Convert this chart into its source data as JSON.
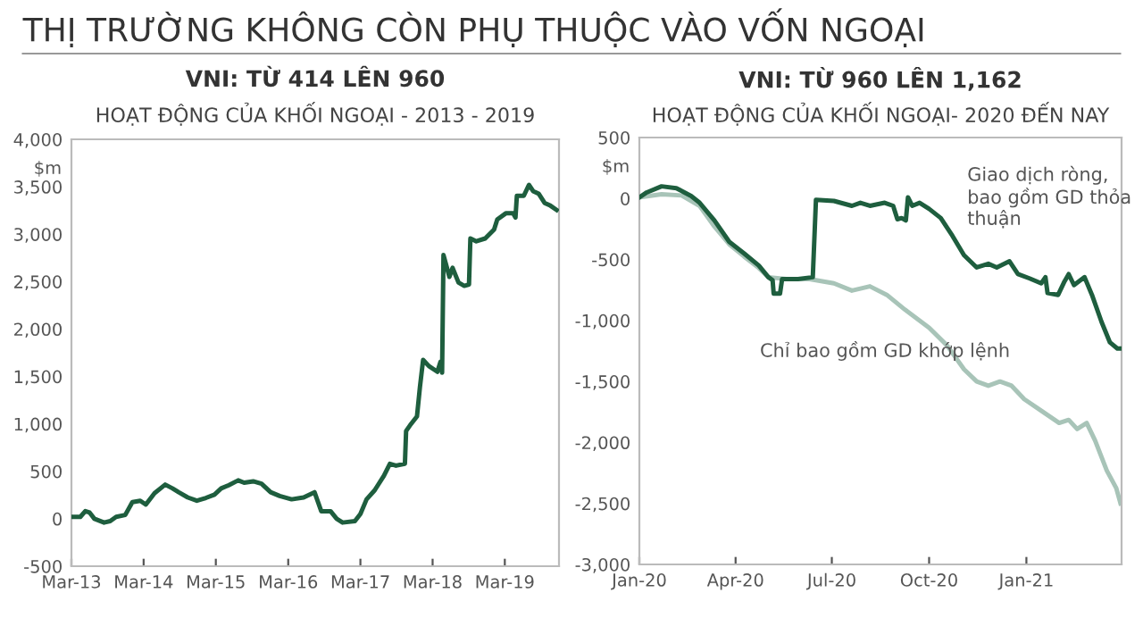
{
  "chart_data": [
    {
      "type": "line",
      "title": "VNI: TỪ 414 LÊN 960",
      "subtitle": "HOẠT ĐỘNG CỦA KHỐI NGOẠI - 2013 - 2019",
      "ylabel": "$m",
      "annotations": [
        "THỊ TRƯỜNG KHÔNG CÒN PHỤ THUỘC VÀO VỐN NGOẠI"
      ],
      "xlim": [
        "2013-03-01",
        "2019-11-30"
      ],
      "xticks": [
        {
          "value": "2013-03-01",
          "label": "Mar-13"
        },
        {
          "value": "2014-03-01",
          "label": "Mar-14"
        },
        {
          "value": "2015-03-01",
          "label": "Mar-15"
        },
        {
          "value": "2016-03-01",
          "label": "Mar-16"
        },
        {
          "value": "2017-03-01",
          "label": "Mar-17"
        },
        {
          "value": "2018-03-01",
          "label": "Mar-18"
        },
        {
          "value": "2019-03-01",
          "label": "Mar-19"
        }
      ],
      "ylim": [
        -500,
        4000
      ],
      "yticks": [
        {
          "value": -500,
          "label": "-500"
        },
        {
          "value": 0,
          "label": "0"
        },
        {
          "value": 500,
          "label": "500"
        },
        {
          "value": 1000,
          "label": "1,000"
        },
        {
          "value": 1500,
          "label": "1,500"
        },
        {
          "value": 2000,
          "label": "2,000"
        },
        {
          "value": 2500,
          "label": "2,500"
        },
        {
          "value": 3000,
          "label": "3,000"
        },
        {
          "value": 3500,
          "label": "3,500"
        },
        {
          "value": 4000,
          "label": "4,000"
        }
      ],
      "grid": false,
      "legend": false,
      "marker": "none",
      "line_style": "solid",
      "series": [
        {
          "color": "#1e5e3e",
          "x": [
            "2013-03-01",
            "2013-04-15",
            "2013-05-10",
            "2013-06-01",
            "2013-06-25",
            "2013-08-13",
            "2013-09-13",
            "2013-10-13",
            "2013-11-28",
            "2014-01-03",
            "2014-02-12",
            "2014-03-12",
            "2014-04-25",
            "2014-06-18",
            "2014-07-25",
            "2014-08-25",
            "2014-10-10",
            "2014-11-25",
            "2015-01-10",
            "2015-02-22",
            "2015-03-28",
            "2015-05-06",
            "2015-06-22",
            "2015-07-22",
            "2015-09-06",
            "2015-10-18",
            "2015-12-03",
            "2016-01-18",
            "2016-03-18",
            "2016-05-18",
            "2016-07-12",
            "2016-08-15",
            "2016-10-01",
            "2016-11-01",
            "2016-12-01",
            "2017-02-01",
            "2017-03-01",
            "2017-04-01",
            "2017-05-12",
            "2017-06-28",
            "2017-07-28",
            "2017-08-28",
            "2017-10-12",
            "2017-10-18",
            "2017-11-12",
            "2017-12-12",
            "2017-12-27",
            "2018-01-12",
            "2018-02-10",
            "2018-03-25",
            "2018-04-10",
            "2018-04-18",
            "2018-04-25",
            "2018-05-25",
            "2018-06-10",
            "2018-07-10",
            "2018-08-08",
            "2018-09-01",
            "2018-09-08",
            "2018-10-08",
            "2018-11-22",
            "2019-01-06",
            "2019-01-22",
            "2019-03-06",
            "2019-04-12",
            "2019-04-24",
            "2019-05-01",
            "2019-06-05",
            "2019-07-01",
            "2019-07-22",
            "2019-08-20",
            "2019-09-18",
            "2019-10-18",
            "2019-11-18"
          ],
          "values": [
            20,
            20,
            80,
            65,
            0,
            -40,
            -25,
            20,
            40,
            175,
            190,
            150,
            270,
            360,
            320,
            280,
            225,
            190,
            220,
            255,
            320,
            355,
            405,
            380,
            395,
            370,
            280,
            240,
            205,
            225,
            280,
            80,
            80,
            0,
            -40,
            -25,
            50,
            205,
            300,
            455,
            580,
            560,
            580,
            925,
            1000,
            1080,
            1390,
            1675,
            1610,
            1550,
            1655,
            1540,
            2780,
            2550,
            2645,
            2490,
            2455,
            2470,
            2955,
            2925,
            2955,
            3050,
            3155,
            3220,
            3220,
            3175,
            3405,
            3405,
            3520,
            3455,
            3425,
            3330,
            3300,
            3255
          ]
        }
      ]
    },
    {
      "type": "line",
      "title": "VNI: TỪ 960 LÊN 1,162",
      "subtitle": "HOẠT ĐỘNG CỦA KHỐI NGOẠI- 2020 ĐẾN NAY",
      "ylabel": "$m",
      "xlim": [
        "2020-01-01",
        "2021-04-01"
      ],
      "xticks": [
        {
          "value": "2020-01-01",
          "label": "Jan-20"
        },
        {
          "value": "2020-04-01",
          "label": "Apr-20"
        },
        {
          "value": "2020-07-01",
          "label": "Jul-20"
        },
        {
          "value": "2020-10-01",
          "label": "Oct-20"
        },
        {
          "value": "2021-01-01",
          "label": "Jan-21"
        }
      ],
      "ylim": [
        -3000,
        500
      ],
      "yticks": [
        {
          "value": -3000,
          "label": "-3,000"
        },
        {
          "value": -2500,
          "label": "-2,500"
        },
        {
          "value": -2000,
          "label": "-2,000"
        },
        {
          "value": -1500,
          "label": "-1,500"
        },
        {
          "value": -1000,
          "label": "-1,000"
        },
        {
          "value": -500,
          "label": "-500"
        },
        {
          "value": 0,
          "label": "0"
        },
        {
          "value": 500,
          "label": "500"
        }
      ],
      "grid": false,
      "legend": false,
      "marker": "none",
      "line_style": "solid",
      "series": [
        {
          "name": "Giao dịch ròng, bao gồm GD thỏa thuận",
          "color": "#1e5e3e",
          "x": [
            "2020-01-01",
            "2020-01-08",
            "2020-01-22",
            "2020-02-05",
            "2020-02-19",
            "2020-02-27",
            "2020-03-12",
            "2020-03-26",
            "2020-04-09",
            "2020-04-23",
            "2020-05-02",
            "2020-05-06",
            "2020-05-07",
            "2020-05-13",
            "2020-05-15",
            "2020-05-30",
            "2020-06-13",
            "2020-06-16",
            "2020-07-03",
            "2020-07-20",
            "2020-07-28",
            "2020-08-06",
            "2020-08-20",
            "2020-08-28",
            "2020-09-01",
            "2020-09-05",
            "2020-09-09",
            "2020-09-11",
            "2020-09-15",
            "2020-09-22",
            "2020-10-01",
            "2020-10-12",
            "2020-10-23",
            "2020-11-03",
            "2020-11-15",
            "2020-11-26",
            "2020-12-04",
            "2020-12-16",
            "2020-12-24",
            "2021-01-04",
            "2021-01-15",
            "2021-01-19",
            "2021-01-21",
            "2021-01-31",
            "2021-02-06",
            "2021-02-10",
            "2021-02-15",
            "2021-02-25",
            "2021-03-04",
            "2021-03-13",
            "2021-03-21",
            "2021-03-28",
            "2021-03-31"
          ],
          "values": [
            10,
            50,
            100,
            85,
            20,
            -35,
            -180,
            -355,
            -450,
            -550,
            -645,
            -670,
            -780,
            -780,
            -660,
            -660,
            -645,
            -10,
            -20,
            -60,
            -35,
            -60,
            -35,
            -60,
            -170,
            -160,
            -180,
            10,
            -60,
            -35,
            -85,
            -160,
            -305,
            -465,
            -565,
            -535,
            -565,
            -515,
            -620,
            -655,
            -695,
            -645,
            -775,
            -790,
            -680,
            -620,
            -710,
            -645,
            -790,
            -1010,
            -1180,
            -1230,
            -1230
          ]
        },
        {
          "name": "Chỉ bao gồm GD khớp lệnh",
          "color": "#a8c4b8",
          "x": [
            "2020-01-01",
            "2020-01-22",
            "2020-02-10",
            "2020-02-27",
            "2020-03-12",
            "2020-03-26",
            "2020-04-09",
            "2020-04-23",
            "2020-05-02",
            "2020-05-19",
            "2020-06-10",
            "2020-07-03",
            "2020-07-20",
            "2020-08-06",
            "2020-08-22",
            "2020-09-08",
            "2020-10-01",
            "2020-10-18",
            "2020-11-03",
            "2020-11-15",
            "2020-11-26",
            "2020-12-07",
            "2020-12-18",
            "2020-12-30",
            "2021-01-15",
            "2021-02-01",
            "2021-02-10",
            "2021-02-18",
            "2021-02-27",
            "2021-03-07",
            "2021-03-18",
            "2021-03-27",
            "2021-03-31"
          ],
          "values": [
            10,
            35,
            25,
            -60,
            -230,
            -375,
            -475,
            -570,
            -645,
            -660,
            -660,
            -695,
            -755,
            -720,
            -790,
            -910,
            -1060,
            -1205,
            -1400,
            -1500,
            -1535,
            -1500,
            -1535,
            -1645,
            -1740,
            -1840,
            -1815,
            -1890,
            -1840,
            -1985,
            -2230,
            -2375,
            -2500
          ]
        }
      ]
    }
  ]
}
